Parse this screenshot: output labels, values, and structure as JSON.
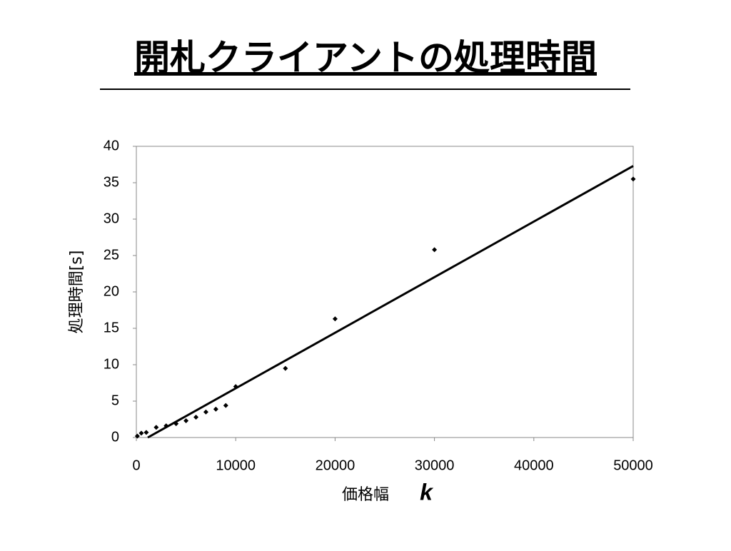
{
  "title": "開札クライアントの処理時間",
  "chart_data": {
    "type": "scatter",
    "xlabel": "価格幅",
    "xlabel_var": "k",
    "ylabel": "処理時間[s]",
    "xlim": [
      0,
      50000
    ],
    "ylim": [
      0,
      40
    ],
    "xticks": [
      0,
      10000,
      20000,
      30000,
      40000,
      50000
    ],
    "yticks": [
      0,
      5,
      10,
      15,
      20,
      25,
      30,
      35,
      40
    ],
    "grid": false,
    "color": "#000000",
    "x": [
      100,
      500,
      1000,
      2000,
      3000,
      4000,
      5000,
      6000,
      7000,
      8000,
      9000,
      10000,
      15000,
      20000,
      30000,
      50000
    ],
    "values": [
      0.2,
      0.6,
      0.7,
      1.4,
      1.6,
      1.9,
      2.3,
      2.8,
      3.5,
      3.9,
      4.4,
      7.0,
      9.5,
      16.3,
      25.8,
      35.5
    ],
    "trendline": {
      "x": [
        1150,
        50000
      ],
      "values": [
        0,
        37.3
      ]
    }
  }
}
